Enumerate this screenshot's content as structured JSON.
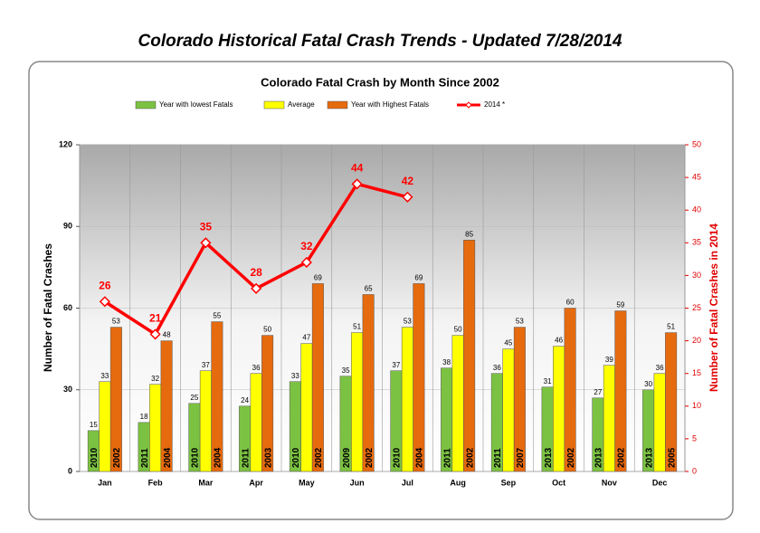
{
  "chart_data": {
    "type": "bar",
    "page_title": "Colorado Historical Fatal Crash Trends - Updated 7/28/2014",
    "title": "Colorado Fatal Crash by Month Since 2002",
    "ylabel": "Number of Fatal Crashes",
    "y2label": "Number of Fatal Crashes in 2014",
    "categories": [
      "Jan",
      "Feb",
      "Mar",
      "Apr",
      "May",
      "Jun",
      "Jul",
      "Aug",
      "Sep",
      "Oct",
      "Nov",
      "Dec"
    ],
    "series": [
      {
        "name": "Year with lowest Fatals",
        "color": "#7cc242",
        "type": "bar",
        "values": [
          15,
          18,
          25,
          24,
          33,
          35,
          37,
          38,
          36,
          31,
          27,
          30
        ],
        "bar_labels": [
          "2010",
          "2011",
          "2010",
          "2011",
          "2010",
          "2009",
          "2010",
          "2011",
          "2011",
          "2013",
          "2013",
          "2013"
        ]
      },
      {
        "name": "Average",
        "color": "#ffff00",
        "type": "bar",
        "values": [
          33,
          32,
          37,
          36,
          47,
          51,
          53,
          50,
          45,
          46,
          39,
          36
        ]
      },
      {
        "name": "Year with Highest Fatals",
        "color": "#e66a0e",
        "type": "bar",
        "values": [
          53,
          48,
          55,
          50,
          69,
          65,
          69,
          85,
          53,
          60,
          59,
          51
        ],
        "bar_labels": [
          "2002",
          "2004",
          "2004",
          "2003",
          "2002",
          "2002",
          "2004",
          "2002",
          "2007",
          "2002",
          "2002",
          "2005"
        ]
      },
      {
        "name": "2014 *",
        "color": "#ff0000",
        "type": "line",
        "axis": "y2",
        "values": [
          26,
          21,
          35,
          28,
          32,
          44,
          42,
          null,
          null,
          null,
          null,
          null
        ]
      }
    ],
    "ylim": [
      0,
      120
    ],
    "yticks": [
      0,
      30,
      60,
      90,
      120
    ],
    "y2lim": [
      0,
      50
    ],
    "y2ticks": [
      0,
      5,
      10,
      15,
      20,
      25,
      30,
      35,
      40,
      45,
      50
    ],
    "grid": true
  }
}
